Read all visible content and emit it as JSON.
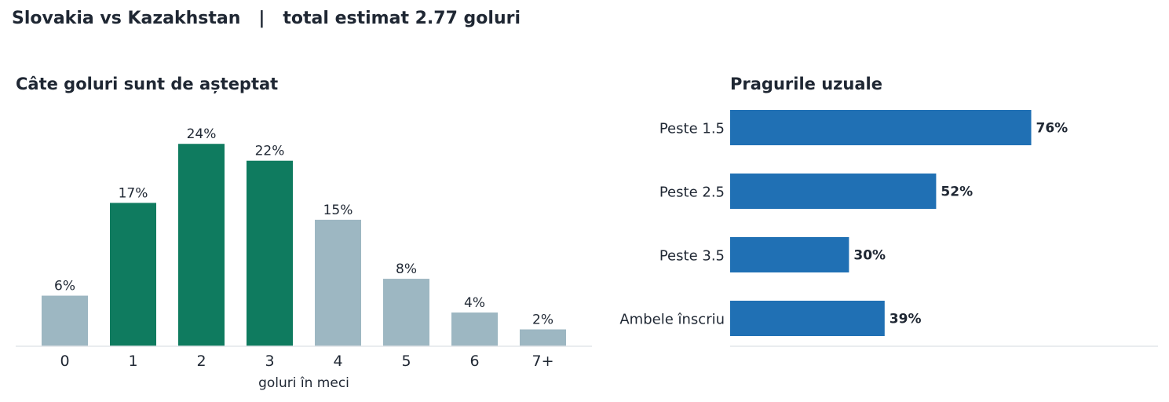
{
  "header": {
    "title": "Slovakia vs Kazakhstan   |   total estimat 2.77 goluri"
  },
  "chart_data": [
    {
      "type": "bar",
      "title": "Câte goluri sunt de așteptat",
      "xlabel": "goluri în meci",
      "ylabel": "",
      "categories": [
        "0",
        "1",
        "2",
        "3",
        "4",
        "5",
        "6",
        "7+"
      ],
      "values": [
        6,
        17,
        24,
        22,
        15,
        8,
        4,
        2
      ],
      "value_labels": [
        "6%",
        "17%",
        "24%",
        "22%",
        "15%",
        "8%",
        "4%",
        "2%"
      ],
      "highlighted": [
        false,
        true,
        true,
        true,
        false,
        false,
        false,
        false
      ],
      "colors": {
        "highlight": "#0f7b5f",
        "normal": "#9db7c2"
      },
      "ylim": [
        0,
        27
      ],
      "grid": false
    },
    {
      "type": "bar",
      "orientation": "horizontal",
      "title": "Pragurile uzuale",
      "categories": [
        "Peste 1.5",
        "Peste 2.5",
        "Peste 3.5",
        "Ambele înscriu"
      ],
      "values": [
        76,
        52,
        30,
        39
      ],
      "value_labels": [
        "76%",
        "52%",
        "30%",
        "39%"
      ],
      "colors": {
        "bar": "#2070b4"
      },
      "xlim": [
        0,
        108
      ],
      "grid": false
    }
  ]
}
